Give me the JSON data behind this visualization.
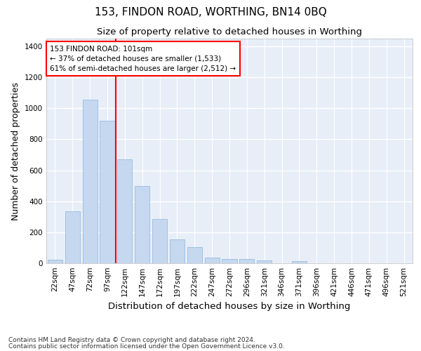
{
  "title": "153, FINDON ROAD, WORTHING, BN14 0BQ",
  "subtitle": "Size of property relative to detached houses in Worthing",
  "xlabel": "Distribution of detached houses by size in Worthing",
  "ylabel": "Number of detached properties",
  "categories": [
    "22sqm",
    "47sqm",
    "72sqm",
    "97sqm",
    "122sqm",
    "147sqm",
    "172sqm",
    "197sqm",
    "222sqm",
    "247sqm",
    "272sqm",
    "296sqm",
    "321sqm",
    "346sqm",
    "371sqm",
    "396sqm",
    "421sqm",
    "446sqm",
    "471sqm",
    "496sqm",
    "521sqm"
  ],
  "values": [
    22,
    335,
    1055,
    920,
    670,
    500,
    285,
    155,
    103,
    37,
    25,
    25,
    18,
    0,
    12,
    0,
    0,
    0,
    0,
    0,
    0
  ],
  "bar_color": "#c5d8f0",
  "bar_edge_color": "#8ab4d8",
  "red_line_x": 3.5,
  "annotation_title": "153 FINDON ROAD: 101sqm",
  "annotation_line1": "← 37% of detached houses are smaller (1,533)",
  "annotation_line2": "61% of semi-detached houses are larger (2,512) →",
  "ylim": [
    0,
    1450
  ],
  "yticks": [
    0,
    200,
    400,
    600,
    800,
    1000,
    1200,
    1400
  ],
  "footer_line1": "Contains HM Land Registry data © Crown copyright and database right 2024.",
  "footer_line2": "Contains public sector information licensed under the Open Government Licence v3.0.",
  "bg_color": "#e8eef8",
  "grid_color": "#ffffff",
  "fig_bg_color": "#ffffff",
  "title_fontsize": 11,
  "subtitle_fontsize": 9.5,
  "axis_label_fontsize": 9,
  "tick_fontsize": 7.5,
  "annotation_fontsize": 7.5,
  "footer_fontsize": 6.5
}
